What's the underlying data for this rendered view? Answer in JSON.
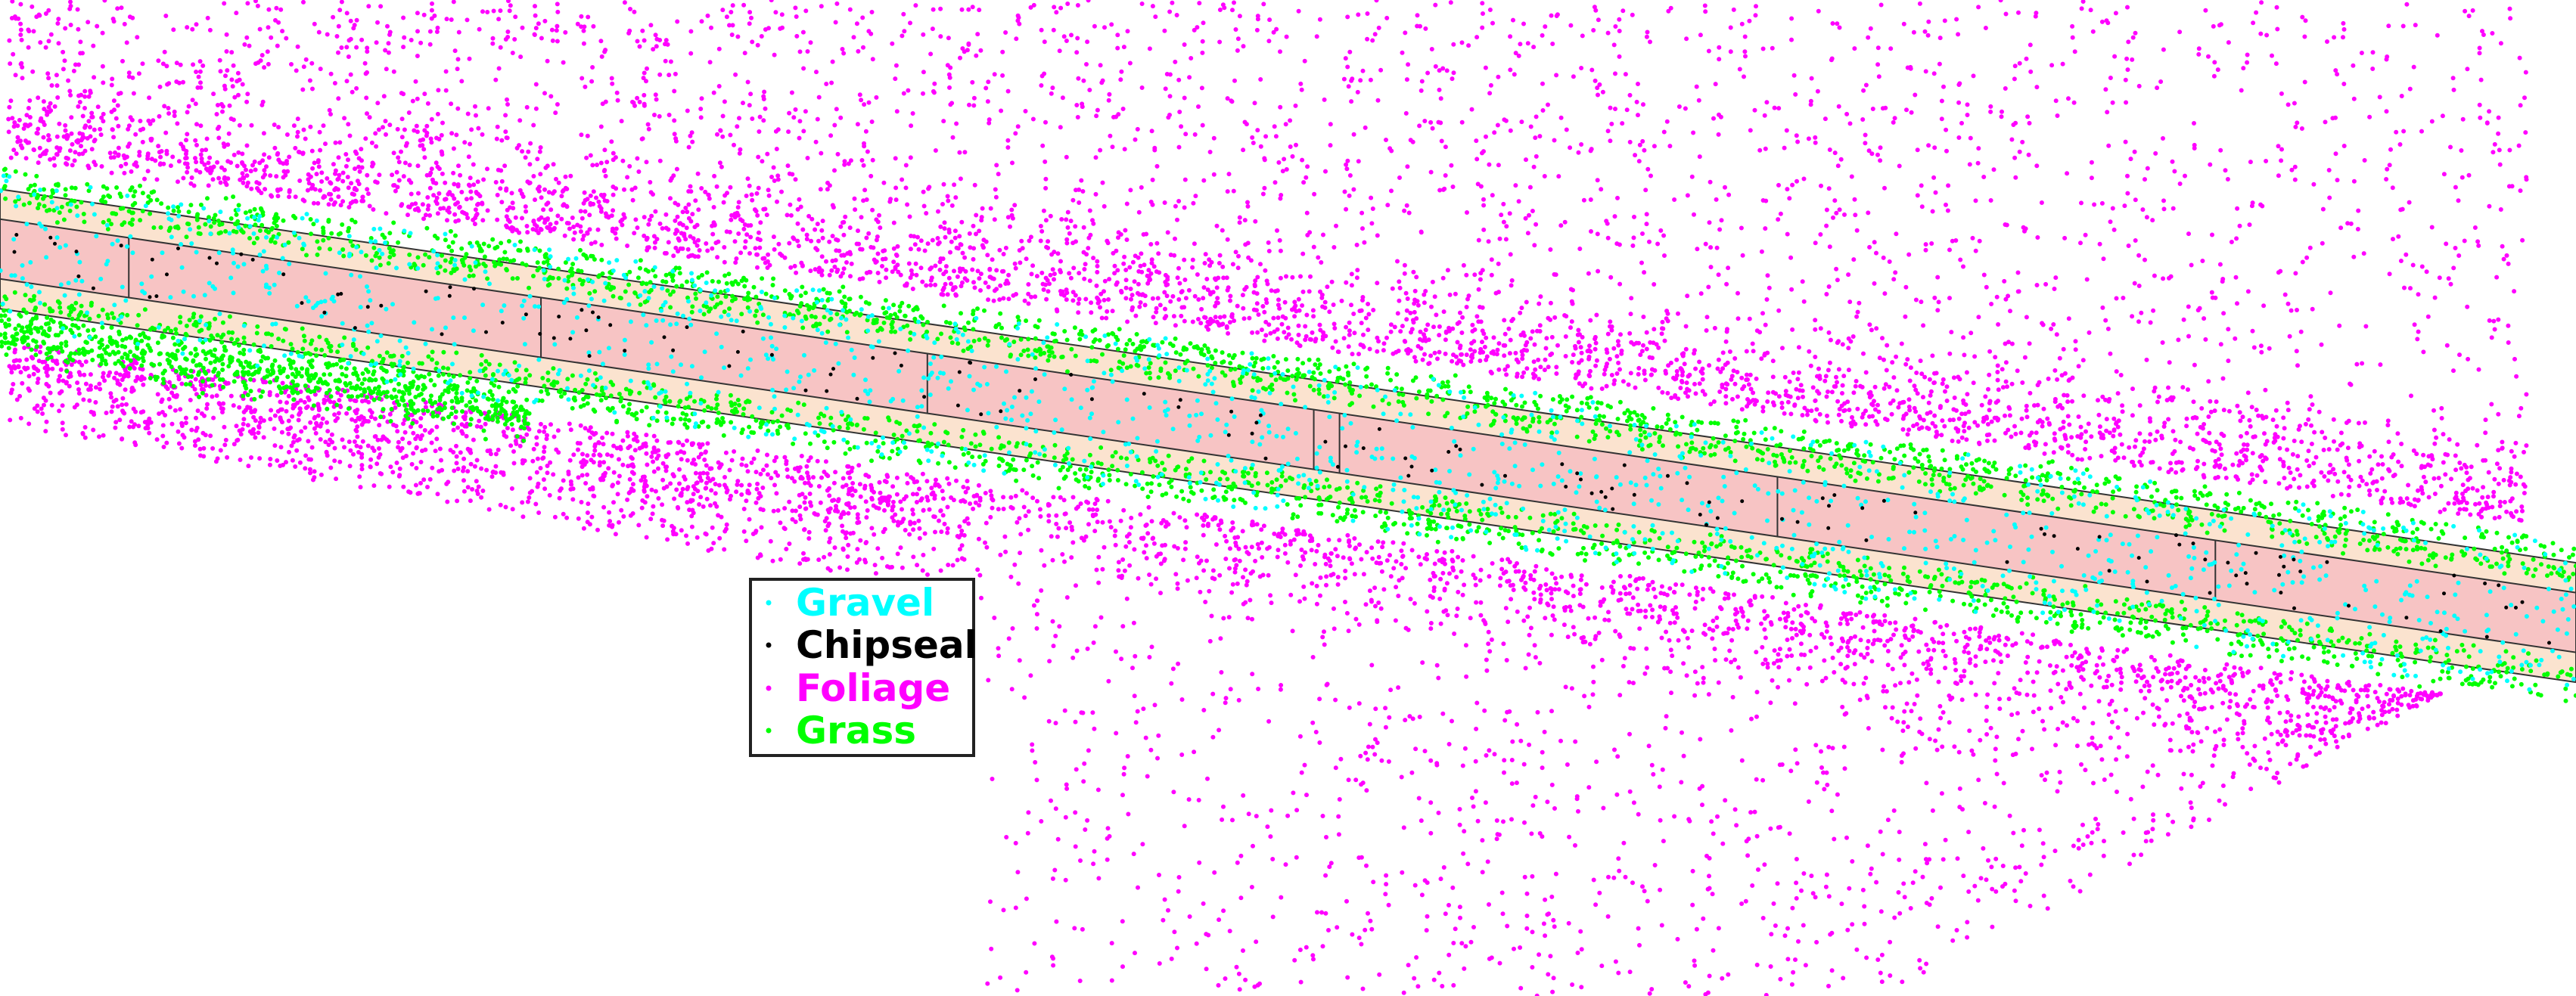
{
  "chart_data": {
    "type": "scatter",
    "title": "",
    "xlabel": "",
    "ylabel": "",
    "grid": false,
    "legend_position": "center-left",
    "xlim": [
      0,
      100
    ],
    "ylim": [
      0,
      40
    ],
    "road": {
      "centerline": [
        [
          0,
          30.0
        ],
        [
          100,
          15.0
        ]
      ],
      "pavement_halfwidth": 1.2,
      "shoulder_halfwidth": 2.4,
      "pavement_color": "#f7c4c4",
      "shoulder_color": "#fbe3cf",
      "edge_color": "#333333",
      "segment_breaks_x": [
        5,
        21,
        36,
        51,
        52,
        69,
        86,
        103
      ]
    },
    "series": [
      {
        "name": "Gravel",
        "color": "#00ffff"
      },
      {
        "name": "Chipseal",
        "color": "#000000"
      },
      {
        "name": "Foliage",
        "color": "#ff00ff"
      },
      {
        "name": "Grass",
        "color": "#00ff00"
      }
    ]
  }
}
